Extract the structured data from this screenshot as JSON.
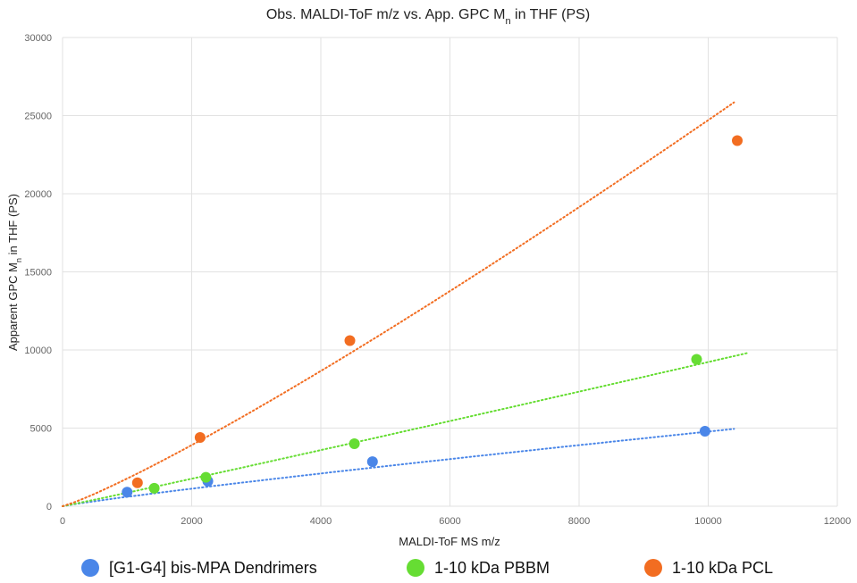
{
  "chart_data": {
    "type": "scatter",
    "title": {
      "pre": "Obs. MALDI-ToF m/z vs. App. GPC M",
      "sub": "n",
      "post": " in THF (PS)"
    },
    "xlabel": "MALDI-ToF MS m/z",
    "ylabel": {
      "pre": "Apparent GPC M",
      "sub": "n",
      "post": " in THF (PS)"
    },
    "xlim": [
      0,
      12000
    ],
    "ylim": [
      0,
      30000
    ],
    "xticks": [
      0,
      2000,
      4000,
      6000,
      8000,
      10000,
      12000
    ],
    "yticks": [
      0,
      5000,
      10000,
      15000,
      20000,
      25000,
      30000
    ],
    "grid": true,
    "legend_position": "bottom",
    "series": [
      {
        "name": "[G1-G4] bis-MPA Dendrimers",
        "color": "#4a86e8",
        "points": [
          [
            1000,
            900
          ],
          [
            2250,
            1600
          ],
          [
            4800,
            2850
          ],
          [
            9950,
            4800
          ]
        ],
        "trendline": {
          "type": "power",
          "a": 1.2,
          "b": 0.9,
          "x_range": [
            0,
            10400
          ]
        }
      },
      {
        "name": "1-10 kDa PBBM",
        "color": "#66dd33",
        "points": [
          [
            1420,
            1150
          ],
          [
            2220,
            1850
          ],
          [
            4520,
            4000
          ],
          [
            9820,
            9400
          ]
        ],
        "trendline": {
          "type": "power",
          "a": 0.7,
          "b": 1.03,
          "x_range": [
            0,
            10600
          ]
        }
      },
      {
        "name": "1-10 kDa PCL",
        "color": "#f26d21",
        "points": [
          [
            1160,
            1500
          ],
          [
            2130,
            4400
          ],
          [
            4450,
            10600
          ],
          [
            10450,
            23400
          ]
        ],
        "trendline": {
          "type": "power",
          "a": 0.65,
          "b": 1.145,
          "x_range": [
            0,
            10400
          ]
        }
      }
    ]
  }
}
